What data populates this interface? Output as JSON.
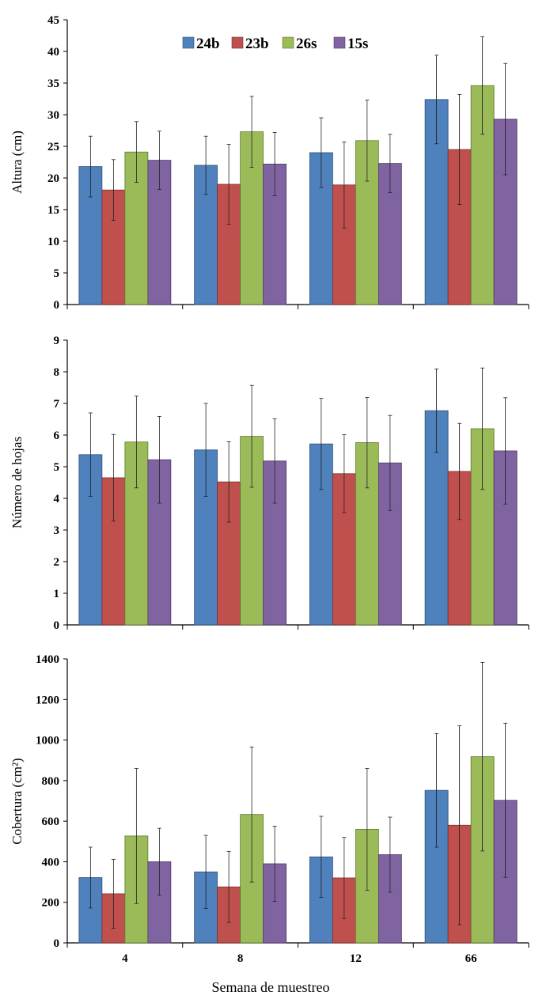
{
  "colors": {
    "24b": "#4F81BD",
    "23b": "#C0504D",
    "26s": "#9BBB59",
    "15s": "#8064A2"
  },
  "chart_data": [
    {
      "type": "bar",
      "categories": [
        "4",
        "8",
        "12",
        "66"
      ],
      "series": [
        {
          "name": "24b",
          "values": [
            21.8,
            22.0,
            24.0,
            32.4
          ],
          "errors": [
            4.8,
            4.6,
            5.5,
            7.0
          ]
        },
        {
          "name": "23b",
          "values": [
            18.1,
            19.0,
            18.9,
            24.5
          ],
          "errors": [
            4.8,
            6.3,
            6.8,
            8.7
          ]
        },
        {
          "name": "26s",
          "values": [
            24.1,
            27.3,
            25.9,
            34.6
          ],
          "errors": [
            4.8,
            5.6,
            6.4,
            7.7
          ]
        },
        {
          "name": "15s",
          "values": [
            22.8,
            22.2,
            22.3,
            29.3
          ],
          "errors": [
            4.6,
            5.0,
            4.6,
            8.8
          ]
        }
      ],
      "ylabel": "Altura (cm)",
      "xlabel": "",
      "ylim": [
        0,
        45
      ],
      "yticks": [
        "0",
        "5",
        "10",
        "15",
        "20",
        "25",
        "30",
        "35",
        "40",
        "45"
      ],
      "legend": "top-center",
      "grid": false
    },
    {
      "type": "bar",
      "categories": [
        "4",
        "8",
        "12",
        "66"
      ],
      "series": [
        {
          "name": "24b",
          "values": [
            5.38,
            5.53,
            5.72,
            6.77
          ],
          "errors": [
            1.32,
            1.47,
            1.44,
            1.32
          ]
        },
        {
          "name": "23b",
          "values": [
            4.65,
            4.52,
            4.78,
            4.85
          ],
          "errors": [
            1.37,
            1.27,
            1.23,
            1.52
          ]
        },
        {
          "name": "26s",
          "values": [
            5.78,
            5.96,
            5.76,
            6.2
          ],
          "errors": [
            1.45,
            1.61,
            1.43,
            1.92
          ]
        },
        {
          "name": "15s",
          "values": [
            5.22,
            5.18,
            5.12,
            5.5
          ],
          "errors": [
            1.37,
            1.33,
            1.5,
            1.68
          ]
        }
      ],
      "ylabel": "Número de hojas",
      "xlabel": "",
      "ylim": [
        0,
        9
      ],
      "yticks": [
        "0",
        "1",
        "2",
        "3",
        "4",
        "5",
        "6",
        "7",
        "8",
        "9"
      ],
      "grid": false
    },
    {
      "type": "bar",
      "categories": [
        "4",
        "8",
        "12",
        "66"
      ],
      "series": [
        {
          "name": "24b",
          "values": [
            322,
            350,
            424,
            752
          ],
          "errors": [
            150,
            180,
            200,
            280
          ]
        },
        {
          "name": "23b",
          "values": [
            242,
            276,
            320,
            580
          ],
          "errors": [
            170,
            175,
            200,
            490
          ]
        },
        {
          "name": "26s",
          "values": [
            527,
            633,
            560,
            918
          ],
          "errors": [
            333,
            333,
            300,
            465
          ]
        },
        {
          "name": "15s",
          "values": [
            400,
            390,
            435,
            703
          ],
          "errors": [
            165,
            185,
            185,
            380
          ]
        }
      ],
      "ylabel": "Cobertura (cm²)",
      "xlabel": "Semana de muestreo",
      "ylim": [
        0,
        1400
      ],
      "yticks": [
        "0",
        "200",
        "400",
        "600",
        "800",
        "1000",
        "1200",
        "1400"
      ],
      "grid": false
    }
  ]
}
